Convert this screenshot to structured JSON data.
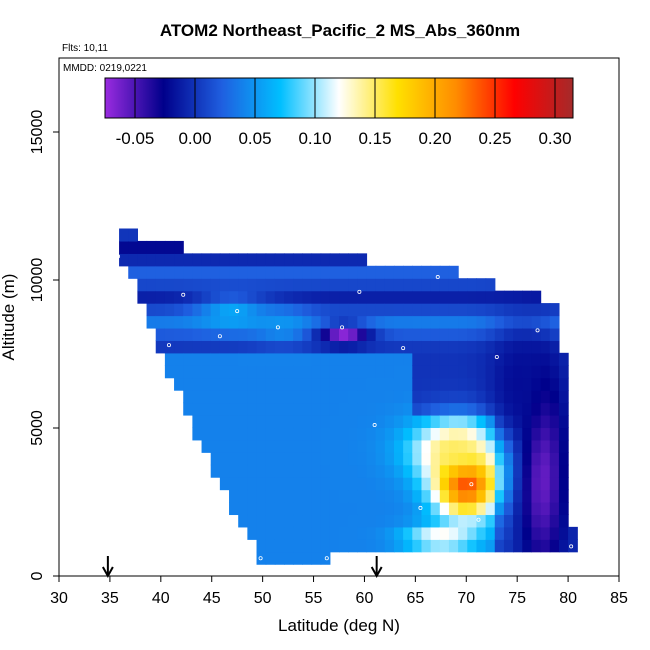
{
  "title": "ATOM2 Northeast_Pacific_2 MS_Abs_360nm",
  "flights_label": "Flts: 10,11",
  "mmdd_label": "MMDD: 0219,0221",
  "chart_data": {
    "type": "heatmap",
    "xlabel": "Latitude (deg N)",
    "ylabel": "Altitude (m)",
    "xlim": [
      30,
      85
    ],
    "ylim": [
      0,
      17500
    ],
    "xticks": [
      "30",
      "35",
      "40",
      "45",
      "50",
      "55",
      "60",
      "65",
      "70",
      "75",
      "80",
      "85"
    ],
    "yticks": [
      "0",
      "5000",
      "10000",
      "15000"
    ],
    "colorbar": {
      "range": [
        -0.075,
        0.315
      ],
      "ticks": [
        "-0.05",
        "0.00",
        "0.05",
        "0.10",
        "0.15",
        "0.20",
        "0.25",
        "0.30"
      ],
      "colors": [
        "#9a2be0",
        "#00008b",
        "#1f5fe0",
        "#00bfff",
        "#ffffff",
        "#ffe000",
        "#ff8c00",
        "#ff0000",
        "#a52a2a"
      ]
    },
    "domain_polygon": [
      [
        35.5,
        11900
      ],
      [
        37.5,
        11900
      ],
      [
        37.5,
        11200
      ],
      [
        57.5,
        10800
      ],
      [
        67.5,
        10400
      ],
      [
        78.5,
        9300
      ],
      [
        79.5,
        9200
      ],
      [
        79.5,
        7800
      ],
      [
        80.2,
        5500
      ],
      [
        80.5,
        1000
      ],
      [
        68,
        900
      ],
      [
        56.5,
        600
      ],
      [
        49.8,
        500
      ],
      [
        49.5,
        800
      ],
      [
        46,
        3000
      ],
      [
        40.5,
        7000
      ],
      [
        38.5,
        9000
      ],
      [
        36.5,
        10400
      ],
      [
        35.5,
        10600
      ]
    ],
    "field_blobs": [
      {
        "lat": 70,
        "alt": 3300,
        "value": 0.27,
        "sigma_lat": 2.3,
        "sigma_alt": 900
      },
      {
        "lat": 69,
        "alt": 4300,
        "value": 0.15,
        "sigma_lat": 3.2,
        "sigma_alt": 700
      },
      {
        "lat": 67.5,
        "alt": 1300,
        "value": 0.13,
        "sigma_lat": 2.5,
        "sigma_alt": 300
      },
      {
        "lat": 47,
        "alt": 8900,
        "value": 0.06,
        "sigma_lat": 2.5,
        "sigma_alt": 400
      },
      {
        "lat": 52,
        "alt": 8500,
        "value": 0.05,
        "sigma_lat": 2,
        "sigma_alt": 400
      },
      {
        "lat": 77.5,
        "alt": 3500,
        "value": -0.06,
        "sigma_lat": 1.6,
        "sigma_alt": 2500
      },
      {
        "lat": 58,
        "alt": 8200,
        "value": -0.07,
        "sigma_lat": 1.8,
        "sigma_alt": 250
      },
      {
        "lat": 75,
        "alt": 6500,
        "value": -0.02,
        "sigma_lat": 2,
        "sigma_alt": 1500
      }
    ],
    "sample_points": [
      [
        36.8,
        11900
      ],
      [
        38.5,
        11800
      ],
      [
        35.8,
        10800
      ],
      [
        67.2,
        10100
      ],
      [
        42.2,
        9500
      ],
      [
        59.5,
        9600
      ],
      [
        79.5,
        9250
      ],
      [
        47.5,
        8950
      ],
      [
        51.5,
        8400
      ],
      [
        57.8,
        8400
      ],
      [
        40.8,
        7800
      ],
      [
        45.8,
        8100
      ],
      [
        63.8,
        7700
      ],
      [
        73,
        7400
      ],
      [
        77,
        8300
      ],
      [
        61,
        5100
      ],
      [
        70.5,
        3100
      ],
      [
        65.5,
        2300
      ],
      [
        71.2,
        1900
      ],
      [
        49.8,
        600
      ],
      [
        56.3,
        600
      ],
      [
        80.3,
        1000
      ]
    ],
    "arrows_lat": [
      34.8,
      61.2
    ]
  }
}
